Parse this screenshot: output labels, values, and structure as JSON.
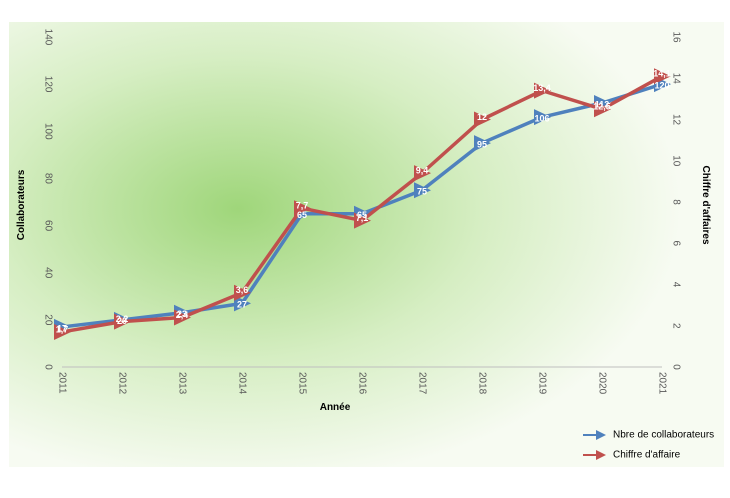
{
  "chart_data": {
    "type": "line",
    "title": "",
    "categories": [
      "2011",
      "2012",
      "2013",
      "2014",
      "2015",
      "2016",
      "2017",
      "2018",
      "2019",
      "2020",
      "2021"
    ],
    "xlabel": "Année",
    "ylabel_left": "Collaborateurs",
    "ylabel_right": "Chiffre d'affaires",
    "y_left_range": [
      0,
      140
    ],
    "y_left_ticks": [
      "0",
      "20",
      "40",
      "60",
      "80",
      "100",
      "120",
      "140"
    ],
    "y_right_range": [
      0,
      16
    ],
    "y_right_ticks": [
      "0",
      "2",
      "4",
      "6",
      "8",
      "10",
      "12",
      "14",
      "16"
    ],
    "grid": false,
    "legend_position": "bottom-right",
    "series": [
      {
        "name": "Nbre de collaborateurs",
        "axis": "left",
        "color": "#4f81bd",
        "values": [
          17,
          20,
          23,
          27,
          65,
          65,
          75,
          95,
          106,
          112,
          120
        ],
        "labels": [
          "17",
          "20",
          "23",
          "27",
          "65",
          "65",
          "75",
          "95",
          "106",
          "112",
          "120"
        ]
      },
      {
        "name": "Chiffre d'affaire",
        "axis": "right",
        "color": "#c0504d",
        "values": [
          1.7,
          2.2,
          2.4,
          3.6,
          7.7,
          7.1,
          9.4,
          12,
          13.4,
          12.5,
          14.1
        ],
        "labels": [
          "1,7",
          "2,2",
          "2,4",
          "3,6",
          "7,7",
          "7,1",
          "9,4",
          "12",
          "13,4",
          "12,5",
          "14,1"
        ]
      }
    ]
  }
}
